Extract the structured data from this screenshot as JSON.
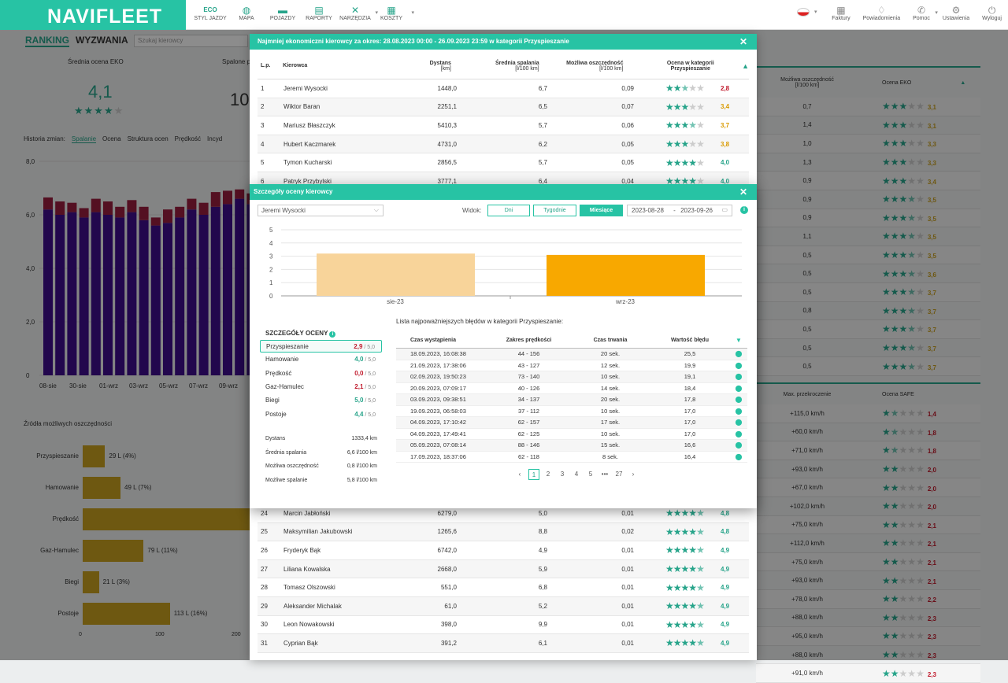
{
  "app": {
    "logo": "NAVIFLEET"
  },
  "nav": [
    {
      "label": "STYL JAZDY",
      "icon": "eco-leaf-icon"
    },
    {
      "label": "MAPA",
      "icon": "globe-icon"
    },
    {
      "label": "POJAZDY",
      "icon": "car-icon"
    },
    {
      "label": "RAPORTY",
      "icon": "report-icon"
    },
    {
      "label": "NARZĘDZIA",
      "icon": "tools-icon"
    },
    {
      "label": "KOSZTY",
      "icon": "calculator-icon"
    }
  ],
  "nav_right": [
    {
      "label": "Faktury",
      "icon": "invoice-icon"
    },
    {
      "label": "Powiadomienia",
      "icon": "bell-icon"
    },
    {
      "label": "Pomoc",
      "icon": "phone-icon"
    },
    {
      "label": "Ustawienia",
      "icon": "gear-icon"
    },
    {
      "label": "Wyloguj",
      "icon": "power-icon"
    }
  ],
  "bg": {
    "tabs": [
      "RANKING",
      "WYZWANIA"
    ],
    "search_placeholder": "Szukaj kierowcy",
    "avg_eco_label": "Średnia ocena EKO",
    "avg_eco_value": "4,1",
    "fuel_label": "Spalone p",
    "fuel_value": "10",
    "history_label": "Historia zmian:",
    "history_tabs": [
      "Spalanie",
      "Ocena",
      "Struktura ocen",
      "Prędkość",
      "Incyd"
    ],
    "chart_y": [
      "8,0",
      "6,0",
      "4,0",
      "2,0",
      "0"
    ],
    "chart_x": [
      "08-sie",
      "30-sie",
      "01-wrz",
      "03-wrz",
      "05-wrz",
      "07-wrz",
      "09-wrz"
    ],
    "sources_title": "Źródła możliwych oszczędności",
    "sources": [
      {
        "label": "Przyspieszanie",
        "value": "29 L (4%)",
        "amount": 29
      },
      {
        "label": "Hamowanie",
        "value": "49 L (7%)",
        "amount": 49
      },
      {
        "label": "Prędkość",
        "value": "",
        "amount": 220
      },
      {
        "label": "Gaz-Hamulec",
        "value": "79 L (11%)",
        "amount": 79
      },
      {
        "label": "Biegi",
        "value": "21 L (3%)",
        "amount": 21
      },
      {
        "label": "Postoje",
        "value": "113 L (16%)",
        "amount": 113
      }
    ],
    "sources_axis": [
      "0",
      "100",
      "200"
    ],
    "right_head": {
      "col1": "Możliwa oszczędność",
      "col1_unit": "[l/100 km]",
      "col2": "Ocena EKO",
      "clip": "ania"
    },
    "right_rows": [
      {
        "v": "0,7",
        "s": "3,1"
      },
      {
        "v": "1,4",
        "s": "3,1"
      },
      {
        "v": "1,0",
        "s": "3,3"
      },
      {
        "v": "1,3",
        "s": "3,3"
      },
      {
        "v": "0,9",
        "s": "3,4"
      },
      {
        "v": "0,9",
        "s": "3,5"
      },
      {
        "v": "0,9",
        "s": "3,5"
      },
      {
        "v": "1,1",
        "s": "3,5"
      },
      {
        "v": "0,5",
        "s": "3,5"
      },
      {
        "v": "0,5",
        "s": "3,6"
      },
      {
        "v": "0,5",
        "s": "3,7"
      },
      {
        "v": "0,8",
        "s": "3,7"
      },
      {
        "v": "0,5",
        "s": "3,7"
      },
      {
        "v": "0,5",
        "s": "3,7"
      },
      {
        "v": "0,5",
        "s": "3,7"
      }
    ],
    "right2_head": {
      "col1": "Max. przekroczenie",
      "col2": "Ocena SAFE",
      "clip": "ej ości"
    },
    "right2_rows": [
      {
        "v": "+115,0 km/h",
        "s": "1,4"
      },
      {
        "v": "+60,0 km/h",
        "s": "1,8"
      },
      {
        "v": "+71,0 km/h",
        "s": "1,8"
      },
      {
        "v": "+93,0 km/h",
        "s": "2,0"
      },
      {
        "v": "+67,0 km/h",
        "s": "2,0"
      },
      {
        "v": "+102,0 km/h",
        "s": "2,0"
      },
      {
        "v": "+75,0 km/h",
        "s": "2,1"
      },
      {
        "v": "+112,0 km/h",
        "s": "2,1"
      },
      {
        "v": "+75,0 km/h",
        "s": "2,1"
      },
      {
        "v": "+93,0 km/h",
        "s": "2,1"
      },
      {
        "v": "+78,0 km/h",
        "s": "2,2"
      },
      {
        "v": "+88,0 km/h",
        "s": "2,3"
      },
      {
        "v": "+95,0 km/h",
        "s": "2,3"
      },
      {
        "v": "+88,0 km/h",
        "s": "2,3"
      },
      {
        "v": "+91,0 km/h",
        "s": "2,3"
      }
    ]
  },
  "modal1": {
    "title": "Najmniej ekonomiczni kierowcy za okres: 28.08.2023 00:00 - 26.09.2023 23:59 w kategorii Przyspieszanie",
    "headers": {
      "lp": "L.p.",
      "name": "Kierowca",
      "dist": "Dystans",
      "dist_unit": "[km]",
      "avg": "Średnia spalania",
      "avg_unit": "[l/100 km]",
      "pos": "Możliwa oszczędność",
      "pos_unit": "[l/100 km]",
      "cat": "Ocena w kategorii",
      "cat2": "Przyspieszanie"
    },
    "rows": [
      {
        "lp": "1",
        "name": "Jeremi Wysocki",
        "dist": "1448,0",
        "avg": "6,7",
        "pos": "0,09",
        "stars": 2.5,
        "score": "2,8",
        "color": "#c0182a"
      },
      {
        "lp": "2",
        "name": "Wiktor Baran",
        "dist": "2251,1",
        "avg": "6,5",
        "pos": "0,07",
        "stars": 3,
        "score": "3,4",
        "color": "#d99a00"
      },
      {
        "lp": "3",
        "name": "Mariusz Błaszczyk",
        "dist": "5410,3",
        "avg": "5,7",
        "pos": "0,06",
        "stars": 3.5,
        "score": "3,7",
        "color": "#d99a00"
      },
      {
        "lp": "4",
        "name": "Hubert Kaczmarek",
        "dist": "4731,0",
        "avg": "6,2",
        "pos": "0,05",
        "stars": 3,
        "score": "3,8",
        "color": "#d99a00"
      },
      {
        "lp": "5",
        "name": "Tymon Kucharski",
        "dist": "2856,5",
        "avg": "5,7",
        "pos": "0,05",
        "stars": 4,
        "score": "4,0",
        "color": "#27a48a"
      },
      {
        "lp": "6",
        "name": "Patryk Przybylski",
        "dist": "3777,1",
        "avg": "6,4",
        "pos": "0,04",
        "stars": 4,
        "score": "4,0",
        "color": "#27a48a"
      }
    ],
    "bottom_rows": [
      {
        "lp": "24",
        "name": "Marcin Jabłoński",
        "dist": "6279,0",
        "avg": "5,0",
        "pos": "0,01",
        "stars": 4.5,
        "score": "4,8",
        "color": "#27a48a"
      },
      {
        "lp": "25",
        "name": "Maksymilian Jakubowski",
        "dist": "1265,6",
        "avg": "8,8",
        "pos": "0,02",
        "stars": 4.5,
        "score": "4,8",
        "color": "#27a48a"
      },
      {
        "lp": "26",
        "name": "Fryderyk Bąk",
        "dist": "6742,0",
        "avg": "4,9",
        "pos": "0,01",
        "stars": 4.5,
        "score": "4,9",
        "color": "#27a48a"
      },
      {
        "lp": "27",
        "name": "Liliana Kowalska",
        "dist": "2668,0",
        "avg": "5,9",
        "pos": "0,01",
        "stars": 4.5,
        "score": "4,9",
        "color": "#27a48a"
      },
      {
        "lp": "28",
        "name": "Tomasz Olszowski",
        "dist": "551,0",
        "avg": "6,8",
        "pos": "0,01",
        "stars": 4.5,
        "score": "4,9",
        "color": "#27a48a"
      },
      {
        "lp": "29",
        "name": "Aleksander Michalak",
        "dist": "61,0",
        "avg": "5,2",
        "pos": "0,01",
        "stars": 4.5,
        "score": "4,9",
        "color": "#27a48a"
      },
      {
        "lp": "30",
        "name": "Leon Nowakowski",
        "dist": "398,0",
        "avg": "9,9",
        "pos": "0,01",
        "stars": 4.5,
        "score": "4,9",
        "color": "#27a48a"
      },
      {
        "lp": "31",
        "name": "Cyprian Bąk",
        "dist": "391,2",
        "avg": "6,1",
        "pos": "0,01",
        "stars": 4.5,
        "score": "4,9",
        "color": "#27a48a"
      }
    ]
  },
  "modal2": {
    "title": "Szczegóły oceny kierowcy",
    "driver": "Jeremi Wysocki",
    "view_label": "Widok:",
    "views": [
      "Dni",
      "Tygodnie",
      "Miesiące"
    ],
    "date_from": "2023-08-28",
    "date_sep": "-",
    "date_to": "2023-09-26",
    "details_title": "SZCZEGÓŁY OCENY",
    "criteria": [
      {
        "label": "Przyspieszanie",
        "score": "2,9",
        "max": "/ 5,0",
        "color": "#c0182a"
      },
      {
        "label": "Hamowanie",
        "score": "4,0",
        "max": "/ 5,0",
        "color": "#27a48a"
      },
      {
        "label": "Prędkość",
        "score": "0,0",
        "max": "/ 5,0",
        "color": "#c0182a"
      },
      {
        "label": "Gaz-Hamulec",
        "score": "2,1",
        "max": "/ 5,0",
        "color": "#c0182a"
      },
      {
        "label": "Biegi",
        "score": "5,0",
        "max": "/ 5,0",
        "color": "#27a48a"
      },
      {
        "label": "Postoje",
        "score": "4,4",
        "max": "/ 5,0",
        "color": "#27a48a"
      }
    ],
    "summary": [
      {
        "label": "Dystans",
        "value": "1333,4 km"
      },
      {
        "label": "Średnia spalania",
        "value": "6,6 l/100 km"
      },
      {
        "label": "Możliwa oszczędność",
        "value": "0,8 l/100 km"
      },
      {
        "label": "Możliwe spalanie",
        "value": "5,8 l/100 km"
      }
    ],
    "errors_title": "Lista najpoważniejszych błędów w kategorii  Przyspieszanie:",
    "err_headers": [
      "Czas wystąpienia",
      "Zakres prędkości",
      "Czas trwania",
      "Wartość błędu"
    ],
    "errors": [
      [
        "18.09.2023, 16:08:38",
        "44 - 156",
        "20 sek.",
        "25,5"
      ],
      [
        "21.09.2023, 17:38:06",
        "43 - 127",
        "12 sek.",
        "19,9"
      ],
      [
        "02.09.2023, 19:50:23",
        "73 - 140",
        "10 sek.",
        "19,1"
      ],
      [
        "20.09.2023, 07:09:17",
        "40 - 126",
        "14 sek.",
        "18,4"
      ],
      [
        "03.09.2023, 09:38:51",
        "34 - 137",
        "20 sek.",
        "17,8"
      ],
      [
        "19.09.2023, 06:58:03",
        "37 - 112",
        "10 sek.",
        "17,0"
      ],
      [
        "04.09.2023, 17:10:42",
        "62 - 157",
        "17 sek.",
        "17,0"
      ],
      [
        "04.09.2023, 17:49:41",
        "62 - 125",
        "10 sek.",
        "17,0"
      ],
      [
        "05.09.2023, 07:08:14",
        "88 - 146",
        "15 sek.",
        "16,6"
      ],
      [
        "17.09.2023, 18:37:06",
        "62 - 118",
        "8 sek.",
        "16,4"
      ]
    ],
    "pages": [
      "1",
      "2",
      "3",
      "4",
      "5",
      "•••",
      "27"
    ],
    "chart_data": {
      "type": "bar",
      "categories": [
        "sie-23",
        "wrz-23"
      ],
      "values": [
        3.2,
        3.1
      ],
      "ylim": [
        0,
        5
      ],
      "yticks": [
        "5",
        "4",
        "3",
        "2",
        "1",
        "0"
      ],
      "colors": [
        "#f8d49a",
        "#f8a800"
      ]
    }
  }
}
